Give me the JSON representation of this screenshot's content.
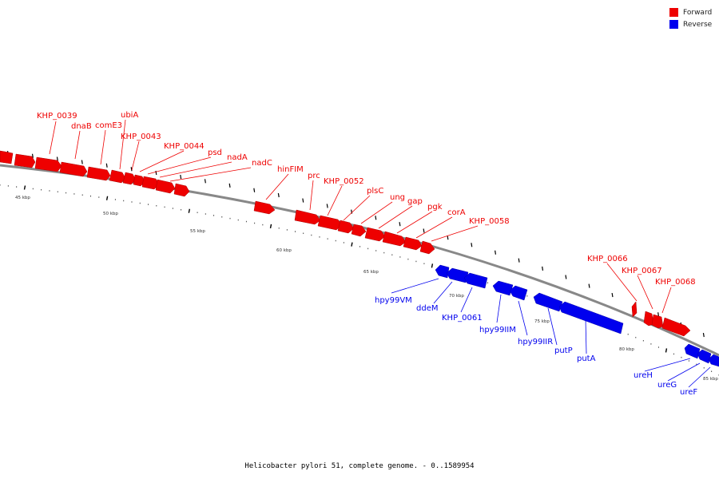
{
  "colors": {
    "forward": "#ee0000",
    "reverse": "#0000ee",
    "backbone": "#888888"
  },
  "legend": {
    "forward_label": "Forward",
    "reverse_label": "Reverse"
  },
  "caption": "Helicobacter pylori 51, complete genome. - 0..1589954",
  "scale": {
    "unit": "kbp",
    "ticks": [
      "45 kbp",
      "50 kbp",
      "55 kbp",
      "60 kbp",
      "65 kbp",
      "70 kbp",
      "75 kbp",
      "80 kbp",
      "85 kbp"
    ]
  },
  "forward_genes": [
    "KHP_0039",
    "dnaB",
    "comE3",
    "ubiA",
    "KHP_0043",
    "KHP_0044",
    "psd",
    "nadA",
    "nadC",
    "hinFIM",
    "prc",
    "KHP_0052",
    "plsC",
    "ung",
    "gap",
    "pgk",
    "corA",
    "KHP_0058",
    "KHP_0066",
    "KHP_0067",
    "KHP_0068"
  ],
  "reverse_genes": [
    "hpy99VM",
    "ddeM",
    "KHP_0061",
    "hpy99IIM",
    "hpy99IIR",
    "putP",
    "putA",
    "ureH",
    "ureG",
    "ureF"
  ]
}
